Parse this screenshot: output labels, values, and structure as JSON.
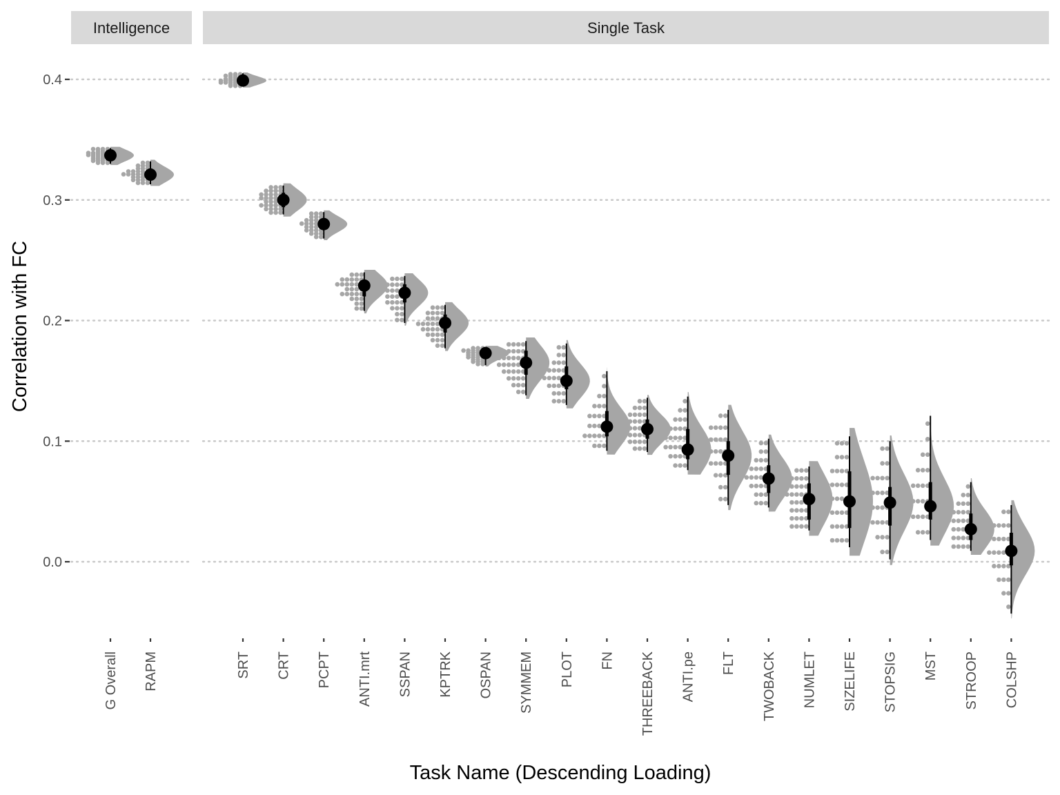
{
  "chart_data": {
    "type": "scatter",
    "xlabel": "Task Name (Descending Loading)",
    "ylabel": "Correlation with FC",
    "ylim": [
      -0.045,
      0.41
    ],
    "yticks": [
      "0.0",
      "0.1",
      "0.2",
      "0.3",
      "0.4"
    ],
    "ytick_values": [
      0.0,
      0.1,
      0.2,
      0.3,
      0.4
    ],
    "grid": "horizontal-dotted",
    "legend": "none",
    "colors": {
      "strip": "#d9d9d9",
      "density": "#a6a6a6",
      "dots": "#a6a6a6",
      "point": "#000000",
      "grid": "#c8c8c8"
    },
    "panels": [
      {
        "strip": "Intelligence",
        "categories": [
          "G Overall",
          "RAPM"
        ],
        "series": [
          {
            "category": "G Overall",
            "median": 0.337,
            "q1": 0.334,
            "q3": 0.341,
            "min": 0.33,
            "max": 0.343
          },
          {
            "category": "RAPM",
            "median": 0.321,
            "q1": 0.317,
            "q3": 0.326,
            "min": 0.313,
            "max": 0.332
          }
        ]
      },
      {
        "strip": "Single Task",
        "categories": [
          "SRT",
          "CRT",
          "PCPT",
          "ANTI.mrt",
          "SSPAN",
          "KPTRK",
          "OSPAN",
          "SYMMEM",
          "PLOT",
          "FN",
          "THREEBACK",
          "ANTI.pe",
          "FLT",
          "TWOBACK",
          "NUMLET",
          "SIZELIFE",
          "STOPSIG",
          "MST",
          "STROOP",
          "COLSHP"
        ],
        "series": [
          {
            "category": "SRT",
            "median": 0.399,
            "q1": 0.397,
            "q3": 0.402,
            "min": 0.394,
            "max": 0.405
          },
          {
            "category": "CRT",
            "median": 0.3,
            "q1": 0.294,
            "q3": 0.306,
            "min": 0.288,
            "max": 0.312
          },
          {
            "category": "PCPT",
            "median": 0.28,
            "q1": 0.276,
            "q3": 0.285,
            "min": 0.268,
            "max": 0.29
          },
          {
            "category": "ANTI.mrt",
            "median": 0.229,
            "q1": 0.22,
            "q3": 0.234,
            "min": 0.208,
            "max": 0.24
          },
          {
            "category": "SSPAN",
            "median": 0.223,
            "q1": 0.215,
            "q3": 0.23,
            "min": 0.198,
            "max": 0.237
          },
          {
            "category": "KPTRK",
            "median": 0.198,
            "q1": 0.19,
            "q3": 0.205,
            "min": 0.177,
            "max": 0.213
          },
          {
            "category": "OSPAN",
            "median": 0.173,
            "q1": 0.17,
            "q3": 0.177,
            "min": 0.163,
            "max": 0.178
          },
          {
            "category": "SYMMEM",
            "median": 0.165,
            "q1": 0.155,
            "q3": 0.175,
            "min": 0.138,
            "max": 0.183
          },
          {
            "category": "PLOT",
            "median": 0.15,
            "q1": 0.143,
            "q3": 0.162,
            "min": 0.13,
            "max": 0.181
          },
          {
            "category": "FN",
            "median": 0.112,
            "q1": 0.104,
            "q3": 0.125,
            "min": 0.092,
            "max": 0.158
          },
          {
            "category": "THREEBACK",
            "median": 0.11,
            "q1": 0.102,
            "q3": 0.118,
            "min": 0.091,
            "max": 0.136
          },
          {
            "category": "ANTI.pe",
            "median": 0.093,
            "q1": 0.085,
            "q3": 0.11,
            "min": 0.076,
            "max": 0.137
          },
          {
            "category": "FLT",
            "median": 0.088,
            "q1": 0.072,
            "q3": 0.1,
            "min": 0.047,
            "max": 0.126
          },
          {
            "category": "TWOBACK",
            "median": 0.069,
            "q1": 0.057,
            "q3": 0.08,
            "min": 0.045,
            "max": 0.102
          },
          {
            "category": "NUMLET",
            "median": 0.052,
            "q1": 0.035,
            "q3": 0.065,
            "min": 0.026,
            "max": 0.079
          },
          {
            "category": "SIZELIFE",
            "median": 0.05,
            "q1": 0.028,
            "q3": 0.075,
            "min": 0.012,
            "max": 0.104
          },
          {
            "category": "STOPSIG",
            "median": 0.049,
            "q1": 0.03,
            "q3": 0.062,
            "min": 0.002,
            "max": 0.1
          },
          {
            "category": "MST",
            "median": 0.046,
            "q1": 0.035,
            "q3": 0.066,
            "min": 0.018,
            "max": 0.121
          },
          {
            "category": "STROOP",
            "median": 0.027,
            "q1": 0.018,
            "q3": 0.04,
            "min": 0.009,
            "max": 0.066
          },
          {
            "category": "COLSHP",
            "median": 0.009,
            "q1": -0.003,
            "q3": 0.024,
            "min": -0.043,
            "max": 0.047
          }
        ]
      }
    ]
  }
}
